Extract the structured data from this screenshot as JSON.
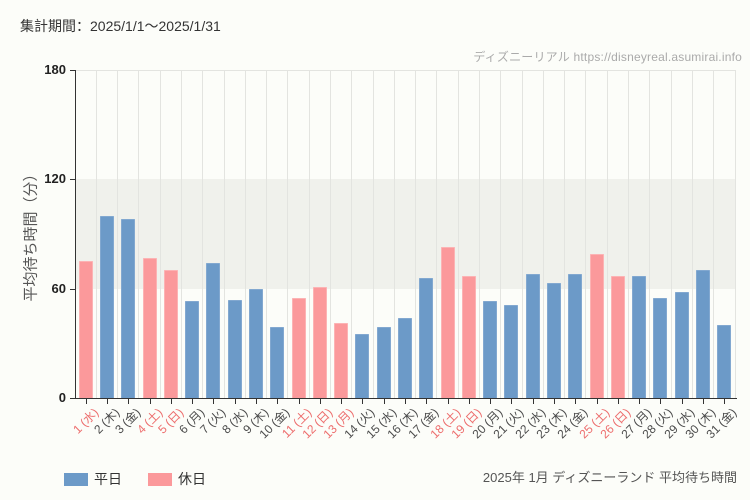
{
  "header": {
    "period_label": "集計期間：2025/1/1～2025/1/31"
  },
  "watermark": {
    "site_name": "ディズニーリアル",
    "url": "https://disneyreal.asumirai.info"
  },
  "legend": {
    "weekday_label": "平日",
    "holiday_label": "休日"
  },
  "footer": {
    "caption": "2025年 1月 ディズニーランド 平均待ち時間"
  },
  "colors": {
    "weekday_bar": "#6c9ac8",
    "weekday_bar_border": "#82a8d0",
    "holiday_bar": "#fb999b",
    "holiday_bar_border": "#fcb3b4",
    "weekday_tick_label": "#4a4a4a",
    "holiday_tick_label": "#ed6d6d",
    "band": "#f0f1ec",
    "gridline": "#e3e4e0",
    "axis": "#333333"
  },
  "chart_data": {
    "type": "bar",
    "title": "",
    "xlabel": "",
    "ylabel": "平均待ち時間（分）",
    "ylim": [
      0,
      180
    ],
    "yticks": [
      0,
      60,
      120,
      180
    ],
    "shaded_band": [
      60,
      120
    ],
    "grid": true,
    "legend_position": "bottom-left",
    "points": [
      {
        "label": "1 (水)",
        "value": 75,
        "kind": "holiday"
      },
      {
        "label": "2 (木)",
        "value": 100,
        "kind": "weekday"
      },
      {
        "label": "3 (金)",
        "value": 98,
        "kind": "weekday"
      },
      {
        "label": "4 (土)",
        "value": 77,
        "kind": "holiday"
      },
      {
        "label": "5 (日)",
        "value": 70,
        "kind": "holiday"
      },
      {
        "label": "6 (月)",
        "value": 53,
        "kind": "weekday"
      },
      {
        "label": "7 (火)",
        "value": 74,
        "kind": "weekday"
      },
      {
        "label": "8 (水)",
        "value": 54,
        "kind": "weekday"
      },
      {
        "label": "9 (木)",
        "value": 60,
        "kind": "weekday"
      },
      {
        "label": "10 (金)",
        "value": 39,
        "kind": "weekday"
      },
      {
        "label": "11 (土)",
        "value": 55,
        "kind": "holiday"
      },
      {
        "label": "12 (日)",
        "value": 61,
        "kind": "holiday"
      },
      {
        "label": "13 (月)",
        "value": 41,
        "kind": "holiday"
      },
      {
        "label": "14 (火)",
        "value": 35,
        "kind": "weekday"
      },
      {
        "label": "15 (水)",
        "value": 39,
        "kind": "weekday"
      },
      {
        "label": "16 (木)",
        "value": 44,
        "kind": "weekday"
      },
      {
        "label": "17 (金)",
        "value": 66,
        "kind": "weekday"
      },
      {
        "label": "18 (土)",
        "value": 83,
        "kind": "holiday"
      },
      {
        "label": "19 (日)",
        "value": 67,
        "kind": "holiday"
      },
      {
        "label": "20 (月)",
        "value": 53,
        "kind": "weekday"
      },
      {
        "label": "21 (火)",
        "value": 51,
        "kind": "weekday"
      },
      {
        "label": "22 (水)",
        "value": 68,
        "kind": "weekday"
      },
      {
        "label": "23 (木)",
        "value": 63,
        "kind": "weekday"
      },
      {
        "label": "24 (金)",
        "value": 68,
        "kind": "weekday"
      },
      {
        "label": "25 (土)",
        "value": 79,
        "kind": "holiday"
      },
      {
        "label": "26 (日)",
        "value": 67,
        "kind": "holiday"
      },
      {
        "label": "27 (月)",
        "value": 67,
        "kind": "weekday"
      },
      {
        "label": "28 (火)",
        "value": 55,
        "kind": "weekday"
      },
      {
        "label": "29 (水)",
        "value": 58,
        "kind": "weekday"
      },
      {
        "label": "30 (木)",
        "value": 70,
        "kind": "weekday"
      },
      {
        "label": "31 (金)",
        "value": 40,
        "kind": "weekday"
      }
    ]
  }
}
